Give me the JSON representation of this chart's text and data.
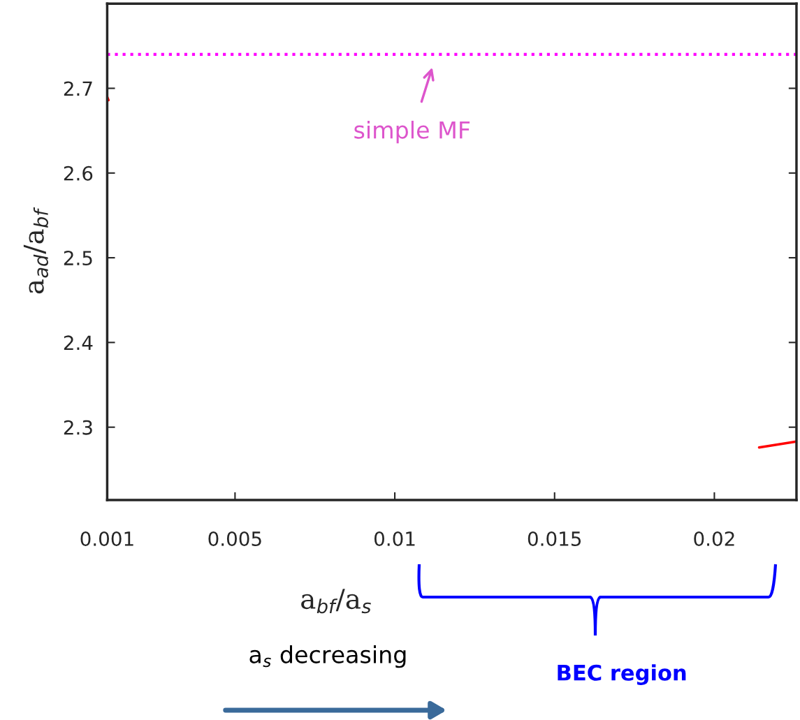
{
  "chart_data": {
    "type": "line",
    "xlabel": "a$_{bf}$/a$_{s}$",
    "ylabel": "a$_{ad}$/a$_{bf}$",
    "x": [
      0.001,
      0.00104,
      0.0115,
      0.0214,
      0.02257
    ],
    "series": [
      {
        "color": "#ff0000",
        "values": [
          2.69,
          2.686,
          null,
          2.276,
          2.283
        ]
      }
    ],
    "xlim": [
      0.001,
      0.02257
    ],
    "ylim": [
      2.214,
      2.8
    ],
    "xticks": [
      0.001,
      0.005,
      0.01,
      0.015,
      0.02
    ],
    "yticks": [
      2.3,
      2.4,
      2.5,
      2.6,
      2.7
    ],
    "ref_lines": [
      {
        "axis": "y",
        "value": 2.74,
        "color": "#ff00ff",
        "line_style": "dotted"
      }
    ],
    "annotations": [
      {
        "text": "simple MF",
        "x": 0.0113,
        "y": 2.74
      },
      "BEC region",
      "a$_{s}$ decreasing"
    ],
    "grid": false,
    "legend": false,
    "line_style": "solid",
    "marker": "none"
  }
}
